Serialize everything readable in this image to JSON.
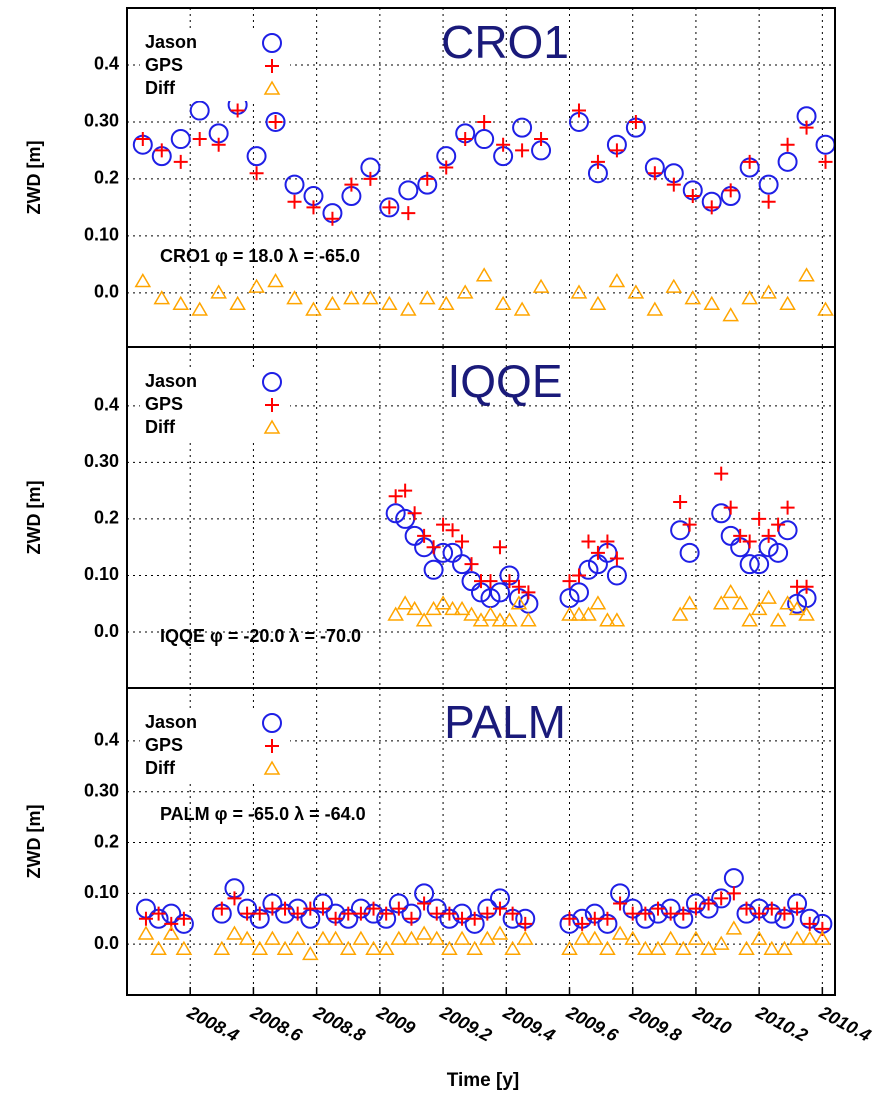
{
  "chart_data": [
    {
      "type": "scatter",
      "title": "CRO1",
      "annotation": "CRO1  φ = 18.0 λ = -65.0",
      "ylabel": "ZWD [m]",
      "x": [
        2008.25,
        2008.31,
        2008.37,
        2008.43,
        2008.49,
        2008.55,
        2008.61,
        2008.67,
        2008.73,
        2008.79,
        2008.85,
        2008.91,
        2008.97,
        2009.03,
        2009.09,
        2009.15,
        2009.21,
        2009.27,
        2009.33,
        2009.39,
        2009.45,
        2009.51,
        2009.63,
        2009.69,
        2009.75,
        2009.81,
        2009.87,
        2009.93,
        2009.99,
        2010.05,
        2010.11,
        2010.17,
        2010.23,
        2010.29,
        2010.35,
        2010.41
      ],
      "series": [
        {
          "name": "Jason",
          "color": "#1f1fe6",
          "marker": "circle",
          "values": [
            0.26,
            0.24,
            0.27,
            0.32,
            0.28,
            0.33,
            0.24,
            0.3,
            0.19,
            0.17,
            0.14,
            0.17,
            0.22,
            0.15,
            0.18,
            0.19,
            0.24,
            0.28,
            0.27,
            0.24,
            0.29,
            0.25,
            0.3,
            0.21,
            0.26,
            0.29,
            0.22,
            0.21,
            0.18,
            0.16,
            0.17,
            0.22,
            0.19,
            0.23,
            0.31,
            0.26
          ]
        },
        {
          "name": "GPS",
          "color": "#ff0000",
          "marker": "plus",
          "values": [
            0.27,
            0.25,
            0.23,
            0.27,
            0.26,
            0.32,
            0.21,
            0.3,
            0.16,
            0.15,
            0.13,
            0.19,
            0.2,
            0.15,
            0.14,
            0.2,
            0.22,
            0.27,
            0.3,
            0.26,
            0.25,
            0.27,
            0.32,
            0.23,
            0.25,
            0.3,
            0.21,
            0.19,
            0.17,
            0.15,
            0.18,
            0.23,
            0.16,
            0.26,
            0.29,
            0.23
          ]
        },
        {
          "name": "Diff",
          "color": "#ffa500",
          "marker": "triangle",
          "values": [
            0.02,
            -0.01,
            -0.02,
            -0.03,
            0.0,
            -0.02,
            0.01,
            0.02,
            -0.01,
            -0.03,
            -0.02,
            -0.01,
            -0.01,
            -0.02,
            -0.03,
            -0.01,
            -0.02,
            0.0,
            0.03,
            -0.02,
            -0.03,
            0.01,
            0.0,
            -0.02,
            0.02,
            0.0,
            -0.03,
            0.01,
            -0.01,
            -0.02,
            -0.04,
            -0.01,
            0.0,
            -0.02,
            0.03,
            -0.03
          ]
        }
      ],
      "xlim": [
        2008.2,
        2010.44
      ],
      "ylim": [
        -0.095,
        0.5
      ],
      "yticks": [
        {
          "value": 0,
          "label": "0.0"
        },
        {
          "value": 0.1,
          "label": "0.10"
        },
        0.2,
        {
          "value": 0.3,
          "label": "0.30"
        },
        0.4
      ],
      "grid": true
    },
    {
      "type": "scatter",
      "title": "IQQE",
      "annotation": "IQQE  φ = -20.0 λ = -70.0",
      "ylabel": "ZWD [m]",
      "x": [
        2009.05,
        2009.08,
        2009.11,
        2009.14,
        2009.17,
        2009.2,
        2009.23,
        2009.26,
        2009.29,
        2009.32,
        2009.35,
        2009.38,
        2009.41,
        2009.44,
        2009.47,
        2009.6,
        2009.63,
        2009.66,
        2009.69,
        2009.72,
        2009.75,
        2009.95,
        2009.98,
        2010.08,
        2010.11,
        2010.14,
        2010.17,
        2010.2,
        2010.23,
        2010.26,
        2010.29,
        2010.32,
        2010.35
      ],
      "series": [
        {
          "name": "Jason",
          "color": "#1f1fe6",
          "marker": "circle",
          "values": [
            0.21,
            0.2,
            0.17,
            0.15,
            0.11,
            0.14,
            0.14,
            0.12,
            0.09,
            0.07,
            0.06,
            0.07,
            0.1,
            0.06,
            0.05,
            0.06,
            0.07,
            0.11,
            0.12,
            0.14,
            0.1,
            0.18,
            0.14,
            0.21,
            0.17,
            0.15,
            0.12,
            0.12,
            0.15,
            0.14,
            0.18,
            0.05,
            0.06
          ]
        },
        {
          "name": "GPS",
          "color": "#ff0000",
          "marker": "plus",
          "values": [
            0.24,
            0.25,
            0.21,
            0.17,
            0.15,
            0.19,
            0.18,
            0.16,
            0.12,
            0.09,
            0.09,
            0.15,
            0.09,
            0.08,
            0.07,
            0.09,
            0.1,
            0.16,
            0.14,
            0.16,
            0.13,
            0.23,
            0.19,
            0.28,
            0.22,
            0.17,
            0.16,
            0.2,
            0.17,
            0.19,
            0.22,
            0.08,
            0.08
          ]
        },
        {
          "name": "Diff",
          "color": "#ffa500",
          "marker": "triangle",
          "values": [
            0.03,
            0.05,
            0.04,
            0.02,
            0.04,
            0.05,
            0.04,
            0.04,
            0.03,
            0.02,
            0.03,
            0.02,
            0.02,
            0.05,
            0.02,
            0.03,
            0.03,
            0.03,
            0.05,
            0.02,
            0.02,
            0.03,
            0.05,
            0.05,
            0.07,
            0.05,
            0.02,
            0.04,
            0.06,
            0.02,
            0.05,
            0.04,
            0.03
          ]
        }
      ],
      "xlim": [
        2008.2,
        2010.44
      ],
      "ylim": [
        -0.099,
        0.504
      ],
      "yticks": [
        {
          "value": 0,
          "label": "0.0"
        },
        {
          "value": 0.1,
          "label": "0.10"
        },
        0.2,
        {
          "value": 0.3,
          "label": "0.30"
        },
        0.4
      ],
      "grid": true
    },
    {
      "type": "scatter",
      "title": "PALM",
      "annotation": "PALM  φ = -65.0 λ = -64.0",
      "ylabel": "ZWD [m]",
      "xlabel": "Time [y]",
      "x": [
        2008.26,
        2008.3,
        2008.34,
        2008.38,
        2008.5,
        2008.54,
        2008.58,
        2008.62,
        2008.66,
        2008.7,
        2008.74,
        2008.78,
        2008.82,
        2008.86,
        2008.9,
        2008.94,
        2008.98,
        2009.02,
        2009.06,
        2009.1,
        2009.14,
        2009.18,
        2009.22,
        2009.26,
        2009.3,
        2009.34,
        2009.38,
        2009.42,
        2009.46,
        2009.6,
        2009.64,
        2009.68,
        2009.72,
        2009.76,
        2009.8,
        2009.84,
        2009.88,
        2009.92,
        2009.96,
        2010.0,
        2010.04,
        2010.08,
        2010.12,
        2010.16,
        2010.2,
        2010.24,
        2010.28,
        2010.32,
        2010.36,
        2010.4
      ],
      "series": [
        {
          "name": "Jason",
          "color": "#1f1fe6",
          "marker": "circle",
          "values": [
            0.07,
            0.05,
            0.06,
            0.04,
            0.06,
            0.11,
            0.07,
            0.05,
            0.08,
            0.06,
            0.07,
            0.05,
            0.08,
            0.06,
            0.05,
            0.07,
            0.06,
            0.05,
            0.08,
            0.06,
            0.1,
            0.07,
            0.05,
            0.06,
            0.04,
            0.07,
            0.09,
            0.05,
            0.05,
            0.04,
            0.05,
            0.06,
            0.04,
            0.1,
            0.07,
            0.05,
            0.06,
            0.07,
            0.05,
            0.08,
            0.07,
            0.09,
            0.13,
            0.06,
            0.07,
            0.06,
            0.05,
            0.08,
            0.05,
            0.04
          ]
        },
        {
          "name": "GPS",
          "color": "#ff0000",
          "marker": "plus",
          "values": [
            0.05,
            0.06,
            0.04,
            0.05,
            0.07,
            0.09,
            0.06,
            0.06,
            0.07,
            0.07,
            0.06,
            0.07,
            0.07,
            0.05,
            0.06,
            0.06,
            0.07,
            0.06,
            0.07,
            0.05,
            0.08,
            0.06,
            0.06,
            0.05,
            0.05,
            0.06,
            0.07,
            0.06,
            0.04,
            0.05,
            0.04,
            0.05,
            0.05,
            0.08,
            0.06,
            0.06,
            0.07,
            0.06,
            0.06,
            0.07,
            0.08,
            0.09,
            0.1,
            0.07,
            0.06,
            0.07,
            0.06,
            0.07,
            0.04,
            0.03
          ]
        },
        {
          "name": "Diff",
          "color": "#ffa500",
          "marker": "triangle",
          "values": [
            0.02,
            -0.01,
            0.02,
            -0.01,
            -0.01,
            0.02,
            0.01,
            -0.01,
            0.01,
            -0.01,
            0.01,
            -0.02,
            0.01,
            0.01,
            -0.01,
            0.01,
            -0.01,
            -0.01,
            0.01,
            0.01,
            0.02,
            0.01,
            -0.01,
            0.01,
            -0.01,
            0.01,
            0.02,
            -0.01,
            0.01,
            -0.01,
            0.01,
            0.01,
            -0.01,
            0.02,
            0.01,
            -0.01,
            -0.01,
            0.01,
            -0.01,
            0.01,
            -0.01,
            0,
            0.03,
            -0.01,
            0.01,
            -0.01,
            -0.01,
            0.01,
            0.01,
            0.01
          ]
        }
      ],
      "xlim": [
        2008.2,
        2010.44
      ],
      "ylim": [
        -0.1,
        0.504
      ],
      "xticks": [
        2008.4,
        2008.6,
        2008.8,
        2009,
        2009.2,
        2009.4,
        2009.6,
        2009.8,
        2010,
        2010.2,
        2010.4
      ],
      "yticks": [
        {
          "value": 0,
          "label": "0.0"
        },
        {
          "value": 0.1,
          "label": "0.10"
        },
        0.2,
        {
          "value": 0.3,
          "label": "0.30"
        },
        0.4
      ],
      "grid": true
    }
  ]
}
